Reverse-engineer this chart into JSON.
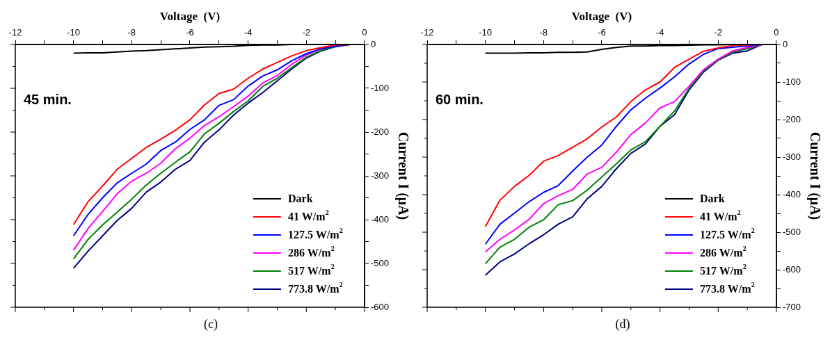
{
  "chart_data": [
    {
      "type": "line",
      "xlabel": "Voltage  (V)",
      "ylabel": "Current I (μA)",
      "annotations": [
        "45 min.",
        "(c)"
      ],
      "x": [
        -10,
        -9.5,
        -9,
        -8.5,
        -8,
        -7.5,
        -7,
        -6.5,
        -6,
        -5.5,
        -5,
        -4.5,
        -4,
        -3.5,
        -3,
        -2.5,
        -2,
        -1.5,
        -1,
        -0.5
      ],
      "xlim": [
        -12,
        0
      ],
      "xticks": [
        -12,
        {
          "value": -11,
          "label": null
        },
        -10,
        {
          "value": -9,
          "label": null
        },
        -8,
        {
          "value": -7,
          "label": null
        },
        -6,
        {
          "value": -5,
          "label": null
        },
        -4,
        {
          "value": -3,
          "label": null
        },
        -2,
        {
          "value": -1,
          "label": null
        },
        0
      ],
      "ylim": [
        -600,
        0
      ],
      "yticks": [
        -600,
        {
          "value": -550,
          "label": null
        },
        -500,
        {
          "value": -450,
          "label": null
        },
        -400,
        {
          "value": -350,
          "label": null
        },
        -300,
        {
          "value": -250,
          "label": null
        },
        -200,
        {
          "value": -150,
          "label": null
        },
        -100,
        {
          "value": -50,
          "label": null
        },
        0
      ],
      "grid": false,
      "legend": "bottom right",
      "marker": "none",
      "line_style": "solid",
      "series": [
        {
          "name": "Dark",
          "color": "#000000",
          "values": [
            -20,
            -19,
            -19,
            -17,
            -15,
            -14,
            -12,
            -10,
            -8,
            -6,
            -5,
            -4,
            -2,
            -1,
            -1,
            0,
            0,
            0,
            0,
            0
          ]
        },
        {
          "name": "41 W/m$^{2}$",
          "color": "#ff0000",
          "values": [
            -411,
            -359,
            -323,
            -285,
            -260,
            -235,
            -216,
            -196,
            -172,
            -138,
            -112,
            -102,
            -77,
            -56,
            -41,
            -26,
            -14,
            -7,
            -1,
            0
          ]
        },
        {
          "name": "127.5 W/m$^{2}$",
          "color": "#0000ff",
          "values": [
            -437,
            -388,
            -350,
            -316,
            -294,
            -273,
            -242,
            -223,
            -194,
            -172,
            -139,
            -126,
            -95,
            -72,
            -58,
            -37,
            -21,
            -10,
            -4,
            0
          ]
        },
        {
          "name": "286 W/m$^{2}$",
          "color": "#ff00ff",
          "values": [
            -470,
            -420,
            -381,
            -341,
            -312,
            -294,
            -271,
            -238,
            -214,
            -185,
            -165,
            -142,
            -118,
            -88,
            -71,
            -45,
            -24,
            -10,
            -3,
            0
          ]
        },
        {
          "name": "517 W/m$^{2}$",
          "color": "#008000",
          "values": [
            -490,
            -445,
            -412,
            -383,
            -353,
            -321,
            -294,
            -269,
            -245,
            -204,
            -180,
            -153,
            -129,
            -96,
            -77,
            -53,
            -29,
            -14,
            -4,
            0
          ]
        },
        {
          "name": "773.8 W/m$^{2}$",
          "color": "#000080",
          "values": [
            -511,
            -472,
            -437,
            -402,
            -374,
            -337,
            -314,
            -285,
            -265,
            -223,
            -195,
            -161,
            -134,
            -110,
            -83,
            -56,
            -31,
            -15,
            -5,
            0
          ]
        }
      ]
    },
    {
      "type": "line",
      "xlabel": "Voltage  (V)",
      "ylabel": "Current I (μA)",
      "annotations": [
        "60 min.",
        "(d)"
      ],
      "x": [
        -10,
        -9.5,
        -9,
        -8.5,
        -8,
        -7.5,
        -7,
        -6.5,
        -6,
        -5.5,
        -5,
        -4.5,
        -4,
        -3.5,
        -3,
        -2.5,
        -2,
        -1.5,
        -1,
        -0.5
      ],
      "xlim": [
        -12,
        0
      ],
      "xticks": [
        -12,
        {
          "value": -11,
          "label": null
        },
        -10,
        {
          "value": -9,
          "label": null
        },
        -8,
        {
          "value": -7,
          "label": null
        },
        -6,
        {
          "value": -5,
          "label": null
        },
        -4,
        {
          "value": -3,
          "label": null
        },
        -2,
        {
          "value": -1,
          "label": null
        },
        0
      ],
      "ylim": [
        -700,
        0
      ],
      "yticks": [
        -700,
        {
          "value": -650,
          "label": null
        },
        -600,
        {
          "value": -550,
          "label": null
        },
        -500,
        {
          "value": -450,
          "label": null
        },
        -400,
        {
          "value": -350,
          "label": null
        },
        -300,
        {
          "value": -250,
          "label": null
        },
        -200,
        {
          "value": -150,
          "label": null
        },
        -100,
        {
          "value": -50,
          "label": null
        },
        0
      ],
      "grid": false,
      "legend": "bottom right",
      "marker": "none",
      "line_style": "solid",
      "series": [
        {
          "name": "Dark",
          "color": "#000000",
          "values": [
            -23,
            -23,
            -23,
            -22,
            -22,
            -21,
            -21,
            -20,
            -13,
            -8,
            -4,
            -4,
            -3,
            -3,
            -2,
            -1,
            -1,
            0,
            0,
            0
          ]
        },
        {
          "name": "41 W/m$^{2}$",
          "color": "#ff0000",
          "values": [
            -485,
            -415,
            -378,
            -349,
            -311,
            -296,
            -274,
            -251,
            -220,
            -193,
            -152,
            -121,
            -100,
            -61,
            -39,
            -18,
            -9,
            -3,
            -1,
            0
          ]
        },
        {
          "name": "127.5 W/m$^{2}$",
          "color": "#0000ff",
          "values": [
            -532,
            -479,
            -449,
            -419,
            -394,
            -376,
            -337,
            -300,
            -268,
            -218,
            -174,
            -143,
            -116,
            -86,
            -52,
            -26,
            -11,
            null,
            null,
            0
          ]
        },
        {
          "name": "286 W/m$^{2}$",
          "color": "#ff00ff",
          "values": [
            -553,
            -519,
            -494,
            -466,
            -424,
            -403,
            -386,
            -345,
            -327,
            -287,
            -240,
            -209,
            -169,
            -152,
            -111,
            -67,
            -39,
            -17,
            -8,
            0
          ]
        },
        {
          "name": "517 W/m$^{2}$",
          "color": "#008000",
          "values": [
            -584,
            -540,
            -519,
            -487,
            -467,
            -427,
            -416,
            -388,
            -353,
            -318,
            -281,
            -259,
            -218,
            -177,
            -117,
            -70,
            -41,
            -20,
            -11,
            0
          ]
        },
        {
          "name": "773.8 W/m$^{2}$",
          "color": "#000080",
          "values": [
            -615,
            -579,
            -558,
            -531,
            -507,
            -479,
            -459,
            -411,
            -378,
            -331,
            -290,
            -265,
            -218,
            -187,
            -121,
            -73,
            -42,
            -23,
            -17,
            0
          ]
        }
      ]
    }
  ]
}
